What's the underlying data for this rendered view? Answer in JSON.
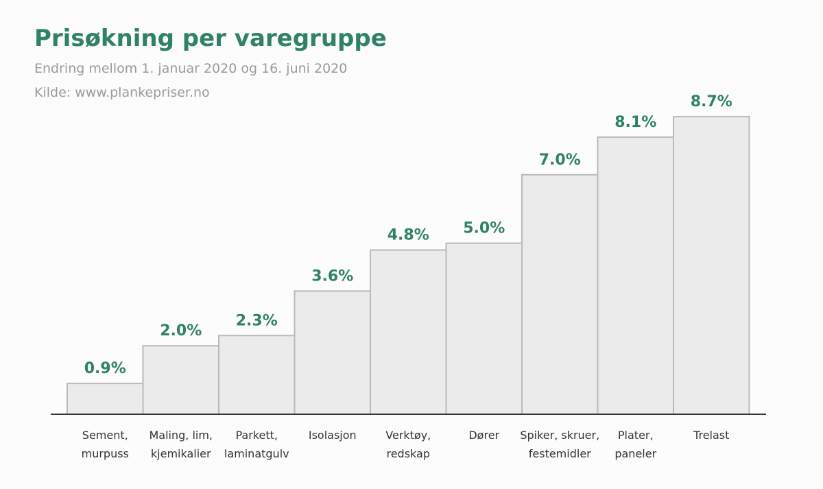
{
  "header": {
    "title": "Prisøkning per varegruppe",
    "subtitle": "Endring mellom 1. januar 2020 og 16. juni 2020",
    "source": "Kilde: www.plankepriser.no"
  },
  "chart_data": {
    "type": "bar",
    "title": "Prisøkning per varegruppe",
    "subtitle": "Endring mellom 1. januar 2020 og 16. juni 2020",
    "xlabel": "",
    "ylabel": "",
    "value_suffix": "%",
    "categories": [
      [
        "Sement,",
        "murpuss"
      ],
      [
        "Maling, lim,",
        "kjemikalier"
      ],
      [
        "Parkett,",
        "laminatgulv"
      ],
      [
        "Isolasjon"
      ],
      [
        "Verktøy,",
        "redskap"
      ],
      [
        "Dører"
      ],
      [
        "Spiker, skruer,",
        "festemidler"
      ],
      [
        "Plater,",
        "paneler"
      ],
      [
        "Trelast"
      ]
    ],
    "values": [
      0.9,
      2.0,
      2.3,
      3.6,
      4.8,
      5.0,
      7.0,
      8.1,
      8.7
    ],
    "value_labels": [
      "0.9%",
      "2.0%",
      "2.3%",
      "3.6%",
      "4.8%",
      "5.0%",
      "7.0%",
      "8.1%",
      "8.7%"
    ],
    "ylim": [
      0,
      8.7
    ],
    "grid": false,
    "colors": {
      "bar_fill": "#ebebeb",
      "bar_stroke": "#b9b9b9",
      "value_text": "#2f8263",
      "axis": "#333333"
    }
  }
}
